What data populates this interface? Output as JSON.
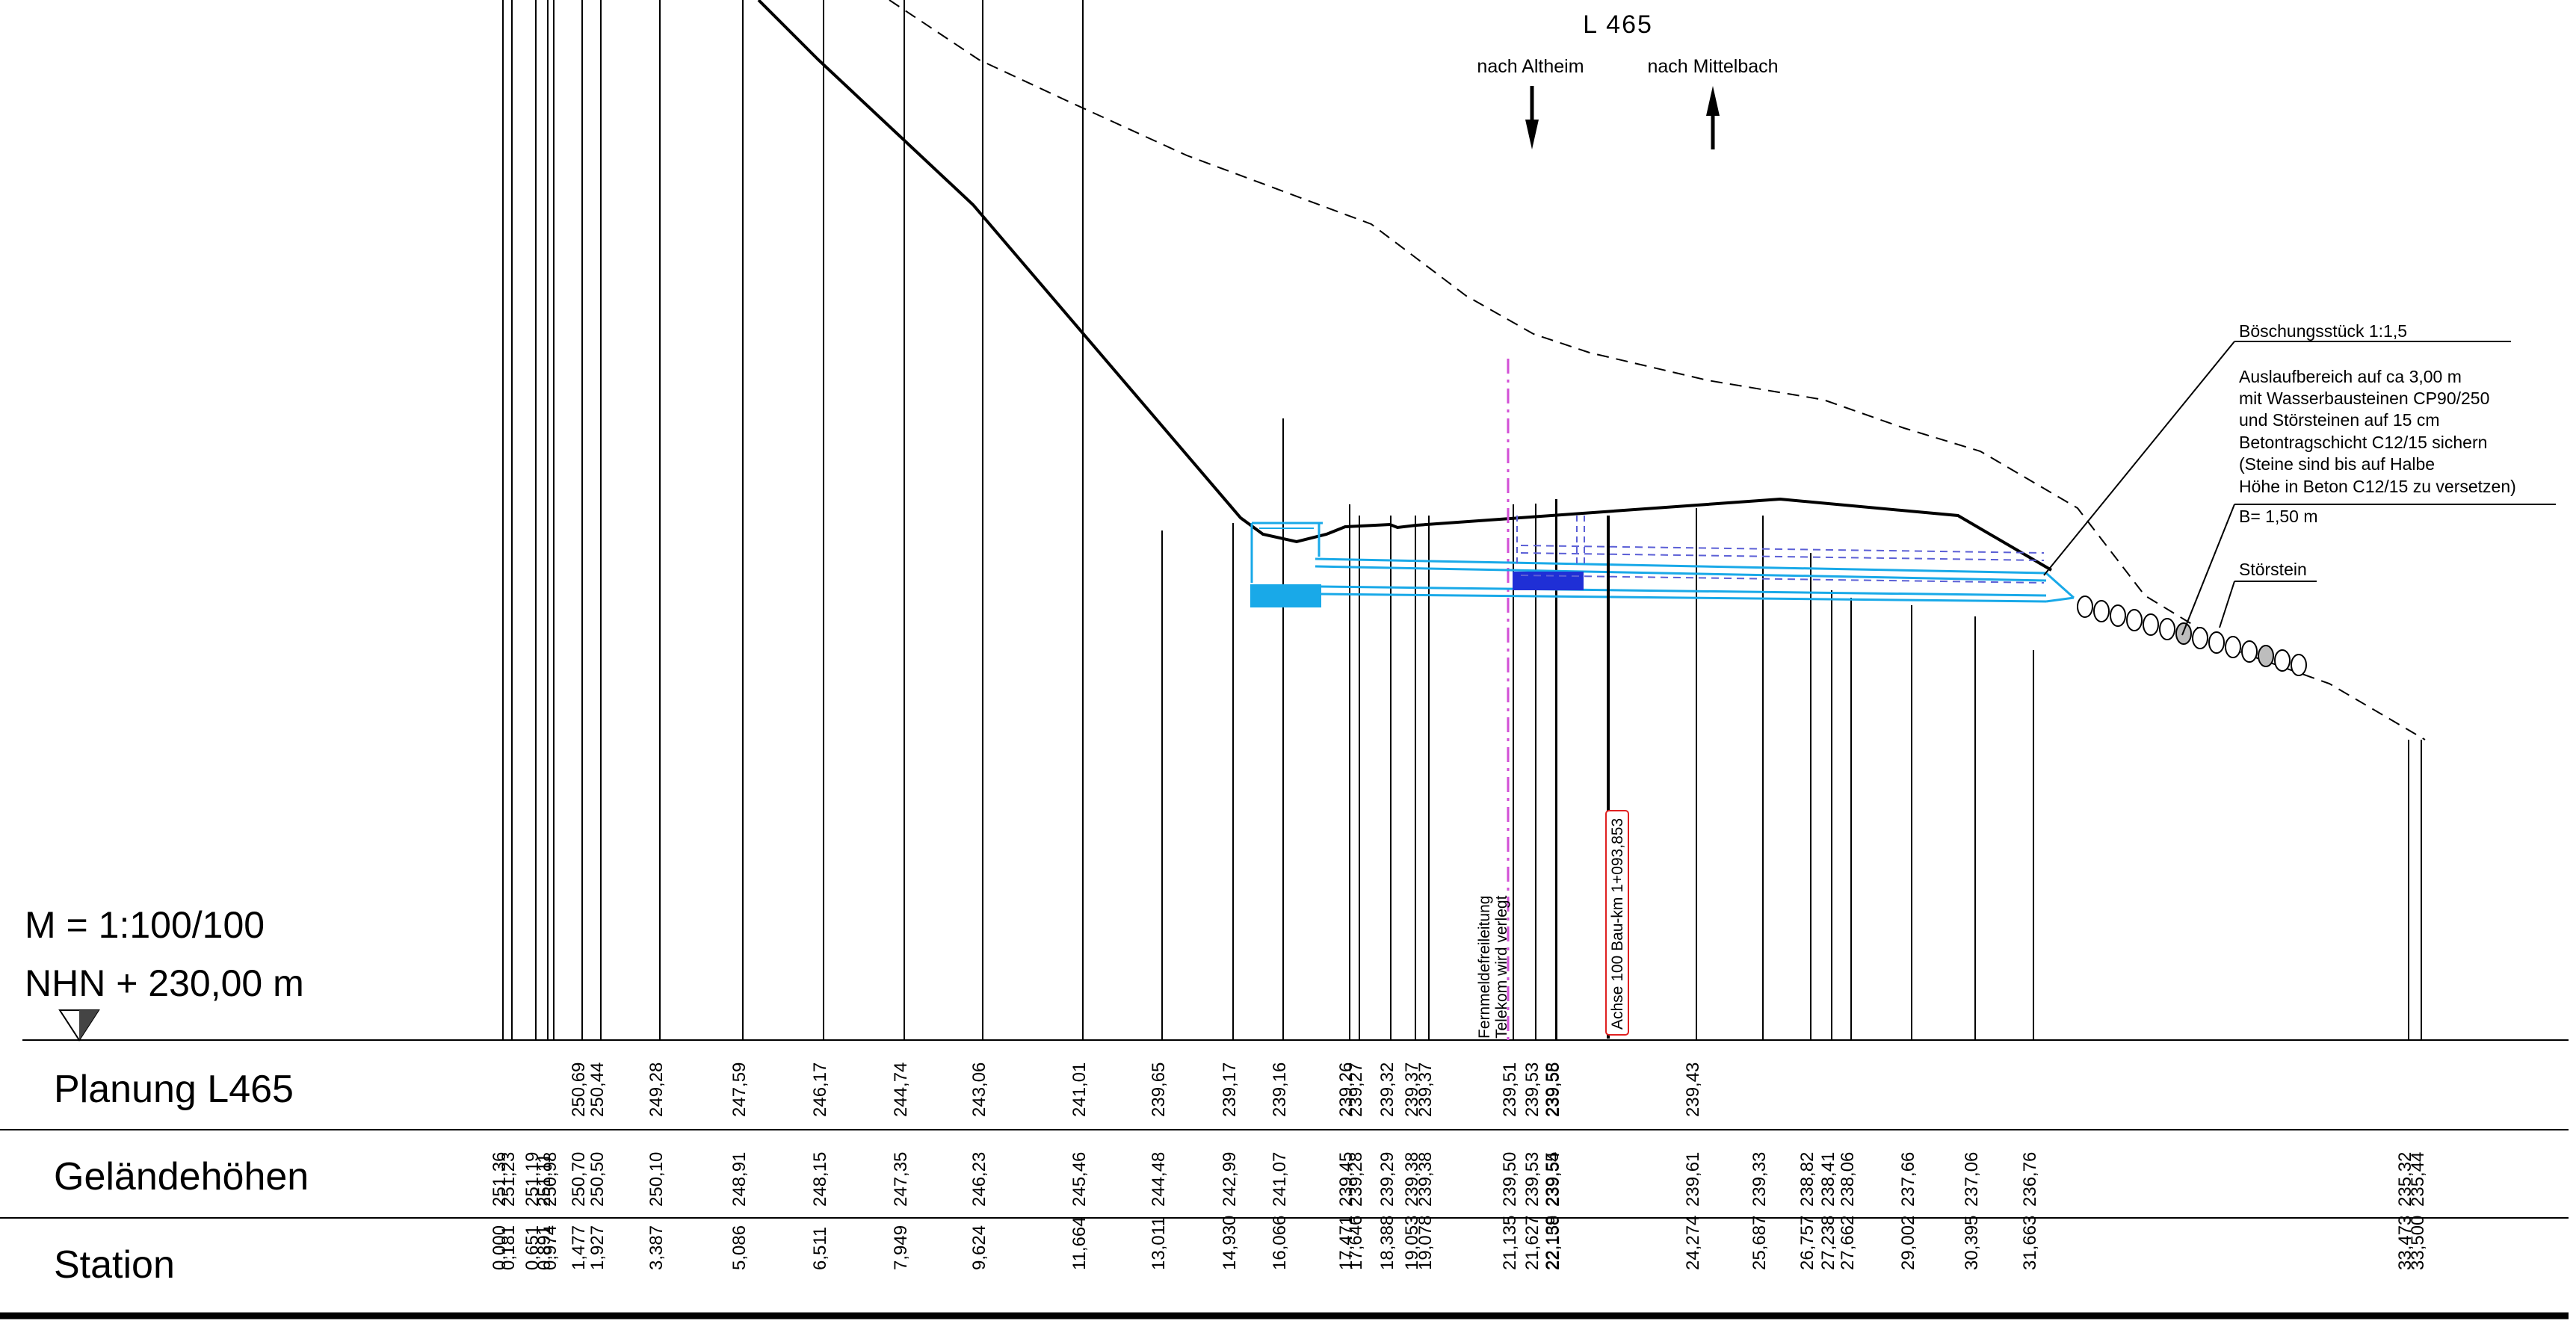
{
  "header": {
    "road": "L 465",
    "dir_left": "nach Altheim",
    "dir_right": "nach Mittelbach"
  },
  "scale": {
    "ratio": "M = 1:100/100",
    "datum": "NHN +  230,00 m",
    "datum_value": 230.0
  },
  "rows": {
    "planung": "Planung L465",
    "gelaende": "Geländehöhen",
    "station": "Station"
  },
  "notes": {
    "boeschung": "Böschungsstück 1:1,5",
    "auslauf": [
      "Auslaufbereich auf ca 3,00 m",
      "mit Wasserbausteinen CP90/250",
      "und Störsteinen auf 15 cm",
      "Betontragschicht C12/15 sichern",
      "(Steine sind bis auf Halbe",
      "Höhe in Beton C12/15 zu versetzen)"
    ],
    "breite": "B= 1,50 m",
    "stoerstein": "Störstein",
    "telekom_1": "Fernmeldefreileitung",
    "telekom_2": "Telekom wird verlegt",
    "achse": "Achse 100 Bau-km 1+093,853"
  },
  "colors": {
    "line": "#000000",
    "pipe": "#19a9e8",
    "culvert_fill": "#19a9e8",
    "dark_block": "#1f2fd6",
    "dashed_pipe": "#5b5fd6",
    "telekom_line": "#d24fd6",
    "axis_marker": "#e02020",
    "stone_fill": "#bdbdbd"
  },
  "stations": [
    {
      "st": "0,000",
      "gel": "251,36",
      "plan": ""
    },
    {
      "st": "0,181",
      "gel": "251,23",
      "plan": ""
    },
    {
      "st": "0,651",
      "gel": "251,19",
      "plan": ""
    },
    {
      "st": "0,891",
      "gel": "251,11",
      "plan": ""
    },
    {
      "st": "0,974",
      "gel": "250,98",
      "plan": ""
    },
    {
      "st": "1,477",
      "gel": "250,70",
      "plan": "250,69"
    },
    {
      "st": "1,927",
      "gel": "250,50",
      "plan": "250,44"
    },
    {
      "st": "3,387",
      "gel": "250,10",
      "plan": "249,28"
    },
    {
      "st": "5,086",
      "gel": "248,91",
      "plan": "247,59"
    },
    {
      "st": "6,511",
      "gel": "248,15",
      "plan": "246,17"
    },
    {
      "st": "7,949",
      "gel": "247,35",
      "plan": "244,74"
    },
    {
      "st": "9,624",
      "gel": "246,23",
      "plan": "243,06"
    },
    {
      "st": "11,664",
      "gel": "245,46",
      "plan": "241,01"
    },
    {
      "st": "13,011",
      "gel": "244,48",
      "plan": "239,65"
    },
    {
      "st": "14,930",
      "gel": "242,99",
      "plan": "239,17"
    },
    {
      "st": "16,066",
      "gel": "241,07",
      "plan": "239,16"
    },
    {
      "st": "17,471",
      "gel": "239,45",
      "plan": "239,26"
    },
    {
      "st": "17,646",
      "gel": "239,28",
      "plan": "239,27"
    },
    {
      "st": "18,388",
      "gel": "239,29",
      "plan": "239,32"
    },
    {
      "st": "19,053",
      "gel": "239,38",
      "plan": "239,37"
    },
    {
      "st": "19,078",
      "gel": "239,38",
      "plan": "239,37"
    },
    {
      "st": "21,135",
      "gel": "239,50",
      "plan": "239,51"
    },
    {
      "st": "21,627",
      "gel": "239,53",
      "plan": "239,53"
    },
    {
      "st": "22,138",
      "gel": "239,55",
      "plan": "239,58"
    },
    {
      "st": "22,159",
      "gel": "239,54",
      "plan": "239,55"
    },
    {
      "st": "24,274",
      "gel": "239,61",
      "plan": "239,43"
    },
    {
      "st": "25,687",
      "gel": "239,33",
      "plan": ""
    },
    {
      "st": "26,757",
      "gel": "238,82",
      "plan": ""
    },
    {
      "st": "27,238",
      "gel": "238,41",
      "plan": ""
    },
    {
      "st": "27,662",
      "gel": "238,06",
      "plan": ""
    },
    {
      "st": "29,002",
      "gel": "237,66",
      "plan": ""
    },
    {
      "st": "30,395",
      "gel": "237,06",
      "plan": ""
    },
    {
      "st": "31,663",
      "gel": "236,76",
      "plan": ""
    },
    {
      "st": "33,473",
      "gel": "235,32",
      "plan": ""
    },
    {
      "st": "33,500",
      "gel": "235,44",
      "plan": ""
    }
  ]
}
